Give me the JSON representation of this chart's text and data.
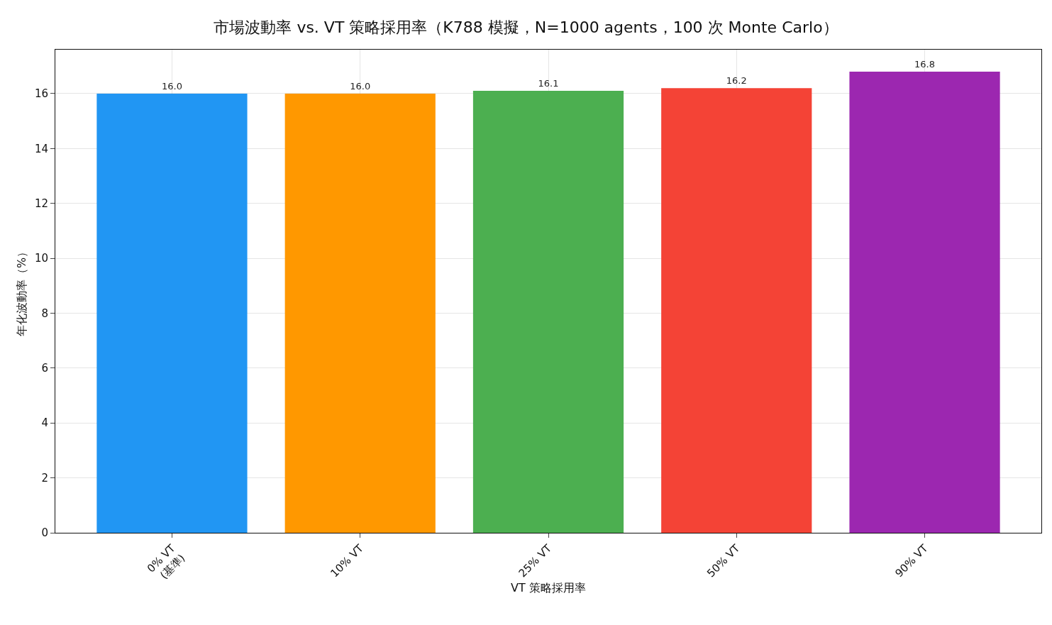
{
  "chart_data": {
    "type": "bar",
    "title": "市場波動率 vs. VT 策略採用率（K788 模擬，N=1000 agents，100 次 Monte Carlo）",
    "xlabel": "VT 策略採用率",
    "ylabel": "年化波動率（%）",
    "categories": [
      "0% VT\n(基準)",
      "10% VT",
      "25% VT",
      "50% VT",
      "90% VT"
    ],
    "values": [
      16.0,
      16.0,
      16.1,
      16.2,
      16.8
    ],
    "colors": [
      "#2196f3",
      "#ff9800",
      "#4caf50",
      "#f44336",
      "#9c27b0"
    ],
    "ylim": [
      0,
      17.6
    ],
    "yticks": [
      0,
      2,
      4,
      6,
      8,
      10,
      12,
      14,
      16
    ],
    "value_labels": [
      "16.0",
      "16.0",
      "16.1",
      "16.2",
      "16.8"
    ],
    "grid": true
  }
}
